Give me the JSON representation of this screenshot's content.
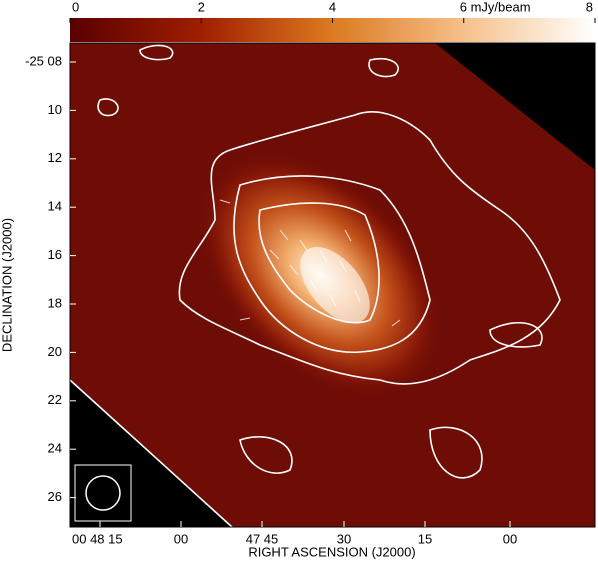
{
  "chart_data": {
    "type": "image",
    "xlabel": "RIGHT ASCENSION (J2000)",
    "ylabel": "DECLINATION (J2000)",
    "xtick_labels": [
      "00 48 15",
      "00",
      "47 45",
      "30",
      "15",
      "00"
    ],
    "ytick_labels": [
      "-25 08",
      "10",
      "12",
      "14",
      "16",
      "18",
      "20",
      "22",
      "24",
      "26"
    ],
    "colorbar": {
      "lim": [
        0,
        8
      ],
      "ticks": [
        0,
        2,
        4,
        {
          "value": 6,
          "label": "6 mJy/beam"
        },
        8
      ]
    }
  }
}
